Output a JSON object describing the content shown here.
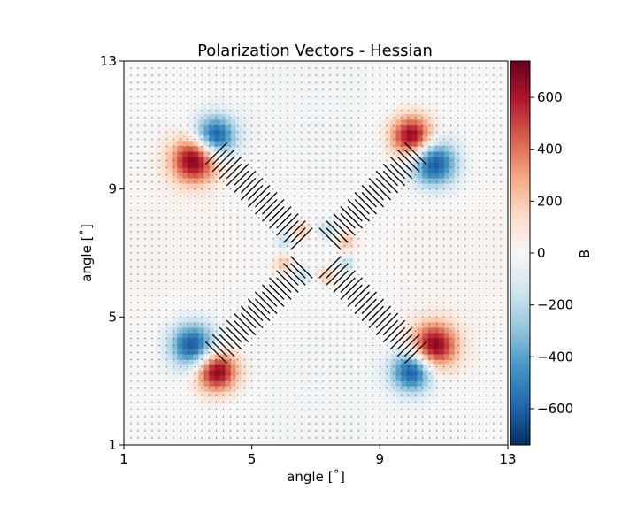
{
  "chart_data": {
    "type": "heatmap",
    "title": "Polarization Vectors - Hessian",
    "xlabel": "angle [$^\\circ$]",
    "ylabel": "angle [$^\\circ$]",
    "xlim": [
      1,
      13
    ],
    "ylim": [
      1,
      13
    ],
    "xticks": [
      1,
      5,
      9,
      13
    ],
    "yticks": [
      1,
      5,
      9,
      13
    ],
    "colorbar": {
      "label": "B",
      "range": [
        -740,
        740
      ],
      "ticks": [
        600,
        400,
        200,
        0,
        -200,
        -400,
        -600
      ],
      "colormap": "RdBu_r",
      "stops": [
        "#053061",
        "#2166ac",
        "#4393c3",
        "#92c5de",
        "#d1e5f0",
        "#f7f7f7",
        "#fddbc7",
        "#f4a582",
        "#d6604d",
        "#b2182b",
        "#67001f"
      ]
    },
    "blobs": [
      {
        "x": 3.85,
        "y": 10.65,
        "b": -650,
        "s": 0.45
      },
      {
        "x": 3.2,
        "y": 9.9,
        "b": 720,
        "s": 0.5
      },
      {
        "x": 10.0,
        "y": 10.65,
        "b": 700,
        "s": 0.45
      },
      {
        "x": 10.7,
        "y": 9.8,
        "b": -650,
        "s": 0.5
      },
      {
        "x": 3.15,
        "y": 4.1,
        "b": -650,
        "s": 0.5
      },
      {
        "x": 3.9,
        "y": 3.3,
        "b": 720,
        "s": 0.45
      },
      {
        "x": 10.7,
        "y": 4.1,
        "b": 700,
        "s": 0.5
      },
      {
        "x": 10.0,
        "y": 3.3,
        "b": -650,
        "s": 0.45
      },
      {
        "x": 6.55,
        "y": 7.7,
        "b": 200,
        "s": 0.2
      },
      {
        "x": 7.35,
        "y": 7.7,
        "b": -180,
        "s": 0.2
      },
      {
        "x": 6.0,
        "y": 7.35,
        "b": -180,
        "s": 0.2
      },
      {
        "x": 7.95,
        "y": 7.35,
        "b": 220,
        "s": 0.2
      },
      {
        "x": 6.0,
        "y": 6.65,
        "b": 220,
        "s": 0.2
      },
      {
        "x": 7.95,
        "y": 6.65,
        "b": -180,
        "s": 0.2
      },
      {
        "x": 6.55,
        "y": 6.3,
        "b": -180,
        "s": 0.2
      },
      {
        "x": 7.35,
        "y": 6.3,
        "b": 200,
        "s": 0.2
      }
    ],
    "vector_field": {
      "center": [
        7,
        7
      ],
      "diagonal_span": [
        0.6,
        4.5
      ],
      "band_width": 0.45
    }
  }
}
